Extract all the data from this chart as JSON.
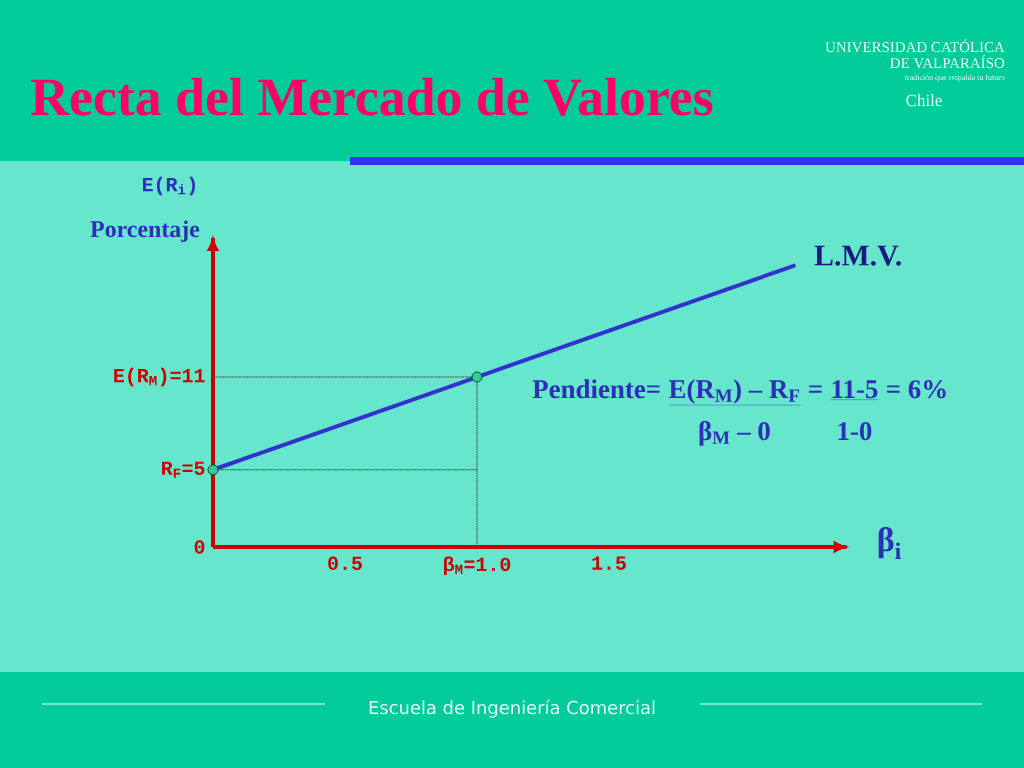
{
  "chart_data": {
    "type": "line",
    "title": "Recta del Mercado de Valores",
    "xlabel": "β$_{i}$",
    "ylabel": "E(R$_{i}$)",
    "xlim": [
      0,
      2.4
    ],
    "ylim": [
      0,
      20
    ],
    "xticks": [
      0.5,
      {
        "value": 1,
        "label": "β$_{M}$=1.0"
      },
      1.5
    ],
    "yticks": [
      0,
      {
        "value": 5,
        "label": "R$_{F}$=5"
      },
      {
        "value": 11,
        "label": "E(R$_{M}$)=11"
      }
    ],
    "series": [
      {
        "name": "L.M.V.",
        "color": "#3333cc",
        "x": [
          0,
          1,
          2.2
        ],
        "values": [
          5,
          11,
          18.2
        ]
      },
      {
        "color": "#555555",
        "line_style": "dotted",
        "x": [
          0,
          1,
          1
        ],
        "values": [
          11,
          11,
          0
        ]
      },
      {
        "color": "#555555",
        "line_style": "dotted",
        "x": [
          0,
          1
        ],
        "values": [
          5,
          5
        ]
      },
      {
        "type": "scatter",
        "color": "#33cc99",
        "marker": "circle",
        "x": [
          0,
          1
        ],
        "values": [
          5,
          11
        ]
      }
    ],
    "annotations": [
      "Porcentaje",
      "Pendiente=",
      "E(R$_{M}$) – R$_{F}$",
      "=",
      "11-5",
      "= 6%",
      "β$_{M}$ – 0",
      "1-0",
      "UNIVERSIDAD CATÓLICA",
      "DE VALPARAÍSO",
      "tradición que respalda tu futuro",
      "Chile",
      "Escuela de Ingeniería Comercial"
    ]
  }
}
